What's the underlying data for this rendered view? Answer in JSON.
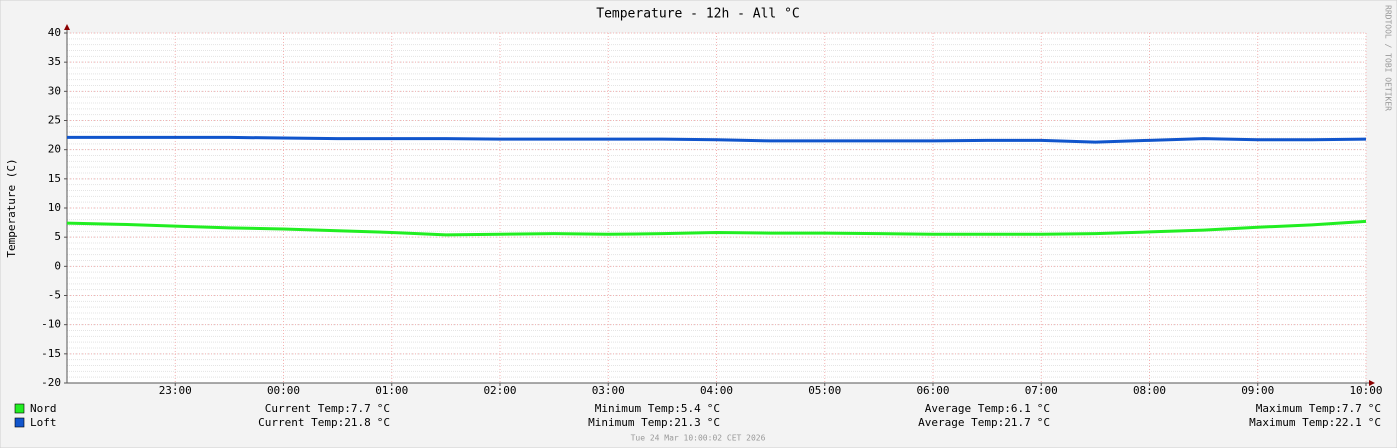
{
  "chart_data": {
    "type": "line",
    "title": "Temperature - 12h - All °C",
    "y_label": "Temperature (C)",
    "side_text": "RRDTOOL / TOBI OETIKER",
    "footer": "Tue 24 Mar 10:00:02 CET 2026",
    "x": [
      22,
      22.5,
      23,
      23.5,
      24,
      24.5,
      25,
      25.5,
      26,
      26.5,
      27,
      27.5,
      28,
      28.5,
      29,
      29.5,
      30,
      30.5,
      31,
      31.5,
      32,
      32.5,
      33,
      33.5,
      34
    ],
    "xlim": [
      22,
      34
    ],
    "xticks": [
      {
        "value": 23,
        "label": "23:00"
      },
      {
        "value": 24,
        "label": "00:00"
      },
      {
        "value": 25,
        "label": "01:00"
      },
      {
        "value": 26,
        "label": "02:00"
      },
      {
        "value": 27,
        "label": "03:00"
      },
      {
        "value": 28,
        "label": "04:00"
      },
      {
        "value": 29,
        "label": "05:00"
      },
      {
        "value": 30,
        "label": "06:00"
      },
      {
        "value": 31,
        "label": "07:00"
      },
      {
        "value": 32,
        "label": "08:00"
      },
      {
        "value": 33,
        "label": "09:00"
      },
      {
        "value": 34,
        "label": "10:00"
      }
    ],
    "ylim": [
      -20,
      40
    ],
    "yticks": [
      -20,
      -15,
      -10,
      -5,
      0,
      5,
      10,
      15,
      20,
      25,
      30,
      35,
      40
    ],
    "grid": true,
    "series": [
      {
        "name": "Nord",
        "color": "#22ee22",
        "values": [
          7.4,
          7.2,
          6.9,
          6.6,
          6.4,
          6.1,
          5.8,
          5.4,
          5.5,
          5.6,
          5.5,
          5.6,
          5.8,
          5.7,
          5.7,
          5.6,
          5.5,
          5.5,
          5.5,
          5.6,
          5.9,
          6.2,
          6.7,
          7.1,
          7.7
        ],
        "stats": [
          {
            "label": "Current Temp:",
            "value": 7.7,
            "unit": "°C"
          },
          {
            "label": "Minimum Temp:",
            "value": 5.4,
            "unit": "°C"
          },
          {
            "label": "Average Temp:",
            "value": 6.1,
            "unit": "°C"
          },
          {
            "label": "Maximum Temp:",
            "value": 7.7,
            "unit": "°C"
          }
        ]
      },
      {
        "name": "Loft",
        "color": "#1155cc",
        "values": [
          22.1,
          22.1,
          22.1,
          22.1,
          22.0,
          21.9,
          21.9,
          21.9,
          21.8,
          21.8,
          21.8,
          21.8,
          21.7,
          21.5,
          21.5,
          21.5,
          21.5,
          21.6,
          21.6,
          21.3,
          21.6,
          21.9,
          21.7,
          21.7,
          21.8
        ],
        "stats": [
          {
            "label": "Current Temp:",
            "value": 21.8,
            "unit": "°C"
          },
          {
            "label": "Minimum Temp:",
            "value": 21.3,
            "unit": "°C"
          },
          {
            "label": "Average Temp:",
            "value": 21.7,
            "unit": "°C"
          },
          {
            "label": "Maximum Temp:",
            "value": 22.1,
            "unit": "°C"
          }
        ]
      }
    ]
  }
}
